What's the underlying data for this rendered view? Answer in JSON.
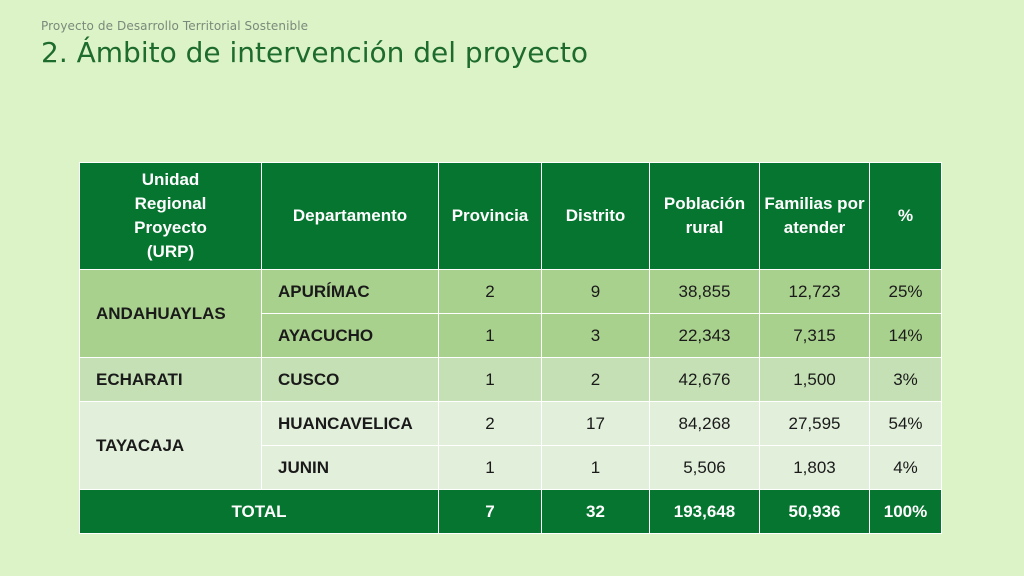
{
  "slide": {
    "kicker": "Proyecto de Desarrollo Territorial Sostenible",
    "title": "2. Ámbito de intervención del proyecto"
  },
  "table": {
    "headers": {
      "urp_line1": "Unidad",
      "urp_line2": "Regional",
      "urp_line3": "Proyecto",
      "urp_line4": "(URP)",
      "departamento": "Departamento",
      "provincia": "Provincia",
      "distrito": "Distrito",
      "poblacion_line1": "Población",
      "poblacion_line2": "rural",
      "familias_line1": "Familias por",
      "familias_line2": "atender",
      "pct": "%"
    },
    "groups": {
      "andahuaylas": "ANDAHUAYLAS",
      "echarati": "ECHARATI",
      "tayacaja": "TAYACAJA"
    },
    "rows": [
      {
        "departamento": "APURÍMAC",
        "provincia": "2",
        "distrito": "9",
        "poblacion": "38,855",
        "familias": "12,723",
        "pct": "25%"
      },
      {
        "departamento": "AYACUCHO",
        "provincia": "1",
        "distrito": "3",
        "poblacion": "22,343",
        "familias": "7,315",
        "pct": "14%"
      },
      {
        "departamento": "CUSCO",
        "provincia": "1",
        "distrito": "2",
        "poblacion": "42,676",
        "familias": "1,500",
        "pct": "3%"
      },
      {
        "departamento": "HUANCAVELICA",
        "provincia": "2",
        "distrito": "17",
        "poblacion": "84,268",
        "familias": "27,595",
        "pct": "54%"
      },
      {
        "departamento": "JUNIN",
        "provincia": "1",
        "distrito": "1",
        "poblacion": "5,506",
        "familias": "1,803",
        "pct": "4%"
      }
    ],
    "total": {
      "label": "TOTAL",
      "provincia": "7",
      "distrito": "32",
      "poblacion": "193,648",
      "familias": "50,936",
      "pct": "100%"
    }
  },
  "colors": {
    "background": "#dcf3c8",
    "header": "#067530",
    "group_andahuaylas": "#a9d18e",
    "group_echarati": "#c5e0b4",
    "group_tayacaja": "#e2efda"
  }
}
